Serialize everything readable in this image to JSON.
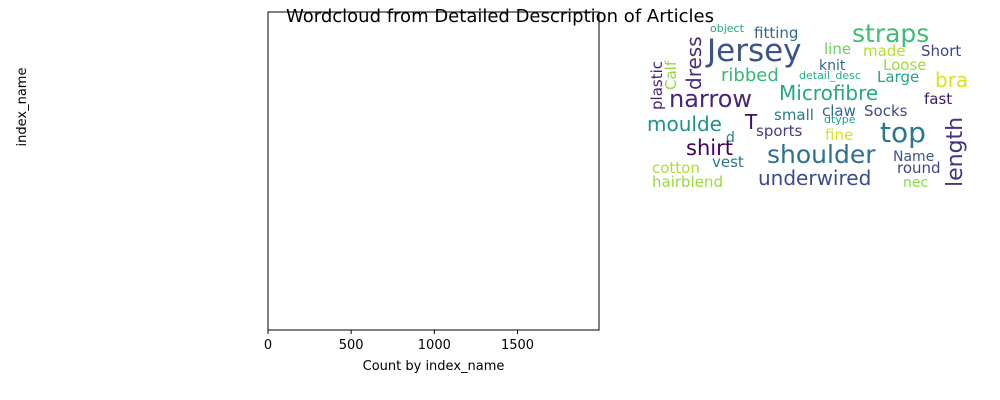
{
  "chart_data": [
    {
      "type": "bar",
      "title": "Wordcloud from Detailed Description of Articles",
      "xlabel": "Count by index_name",
      "ylabel": "index_name",
      "xlim": [
        0,
        1990
      ],
      "x_ticks": [
        0,
        500,
        1000,
        1500
      ],
      "x_tick_labels": [
        "0",
        "500",
        "1000",
        "1500"
      ],
      "categories": [],
      "values": [],
      "grid": false
    },
    {
      "type": "wordcloud",
      "colormap": "viridis",
      "words": [
        {
          "text": "Jersey",
          "color": "#3b528b"
        },
        {
          "text": "straps",
          "color": "#3fbc73"
        },
        {
          "text": "top",
          "color": "#2a788e"
        },
        {
          "text": "shoulder",
          "color": "#2c728e"
        },
        {
          "text": "narrow",
          "color": "#482576"
        },
        {
          "text": "Microfibre",
          "color": "#26a784"
        },
        {
          "text": "underwired",
          "color": "#3e4a89"
        },
        {
          "text": "length",
          "color": "#46337e"
        },
        {
          "text": "dress",
          "color": "#472d7b"
        },
        {
          "text": "bra",
          "color": "#d8e219"
        },
        {
          "text": "shirt",
          "color": "#440154"
        },
        {
          "text": "moulde",
          "color": "#21918c"
        },
        {
          "text": "ribbed",
          "color": "#35b779"
        },
        {
          "text": "T",
          "color": "#3b0f70"
        },
        {
          "text": "fitting",
          "color": "#31688e"
        },
        {
          "text": "Short",
          "color": "#414487"
        },
        {
          "text": "made",
          "color": "#b5de2b"
        },
        {
          "text": "line",
          "color": "#6ece58"
        },
        {
          "text": "knit",
          "color": "#30678d"
        },
        {
          "text": "Loose",
          "color": "#a0da39"
        },
        {
          "text": "Large",
          "color": "#20a386"
        },
        {
          "text": "fast",
          "color": "#39196b"
        },
        {
          "text": "Socks",
          "color": "#3e4989"
        },
        {
          "text": "claw",
          "color": "#31688e"
        },
        {
          "text": "small",
          "color": "#2a788e"
        },
        {
          "text": "sports",
          "color": "#433e85"
        },
        {
          "text": "fine",
          "color": "#dce319"
        },
        {
          "text": "Name",
          "color": "#3b528b"
        },
        {
          "text": "round",
          "color": "#414487"
        },
        {
          "text": "nec",
          "color": "#8fd744"
        },
        {
          "text": "vest",
          "color": "#2a788e"
        },
        {
          "text": "cotton",
          "color": "#addc30"
        },
        {
          "text": "hairblend",
          "color": "#9bd93c"
        },
        {
          "text": "d",
          "color": "#25848e"
        },
        {
          "text": "plastic",
          "color": "#482475"
        },
        {
          "text": "Calf",
          "color": "#93d741"
        },
        {
          "text": "object",
          "color": "#22a785"
        },
        {
          "text": "detail_desc",
          "color": "#25ab82"
        },
        {
          "text": "dtype",
          "color": "#1fa088"
        }
      ]
    }
  ]
}
